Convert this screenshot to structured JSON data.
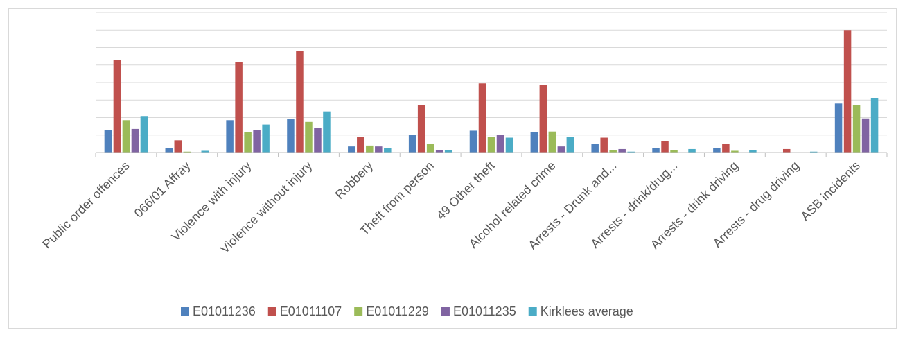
{
  "chart_data": {
    "type": "bar",
    "title": "",
    "xlabel": "",
    "ylabel": "",
    "ylim": [
      0,
      80
    ],
    "grid": true,
    "legend_position": "bottom",
    "categories": [
      "Public order offences",
      "066/01 Affray",
      "Violence with injury",
      "Violence without injury",
      "Robbery",
      "Theft from person",
      "49 Other theft",
      "Alcohol related crime",
      "Arrests - Drunk and...",
      "Arrests - drink/drug...",
      "Arrests - drink driving",
      "Arrests - drug driving",
      "ASB incidents"
    ],
    "series": [
      {
        "name": "E01011236",
        "color": "#4f81bd",
        "values": [
          13,
          2.5,
          18.5,
          19,
          3.5,
          10,
          12.5,
          11.5,
          5,
          2.5,
          2.5,
          0,
          28
        ]
      },
      {
        "name": "E01011107",
        "color": "#c0504d",
        "values": [
          53,
          7,
          51.5,
          58,
          9,
          27,
          39.5,
          38.5,
          8.5,
          6.5,
          5,
          2,
          70
        ]
      },
      {
        "name": "E01011229",
        "color": "#9bbb59",
        "values": [
          18.5,
          0.5,
          11.5,
          17.5,
          4,
          5,
          9,
          12,
          1.5,
          1.5,
          1,
          0,
          27
        ]
      },
      {
        "name": "E01011235",
        "color": "#8064a2",
        "values": [
          13.5,
          0,
          13,
          14,
          3.5,
          1.5,
          10,
          3.5,
          2,
          0,
          0,
          0,
          19.5
        ]
      },
      {
        "name": "Kirklees average",
        "color": "#4bacc6",
        "values": [
          20.5,
          1,
          16,
          23.5,
          2.5,
          1.5,
          8.5,
          9,
          0.5,
          2,
          1.5,
          0.5,
          31
        ]
      }
    ]
  }
}
